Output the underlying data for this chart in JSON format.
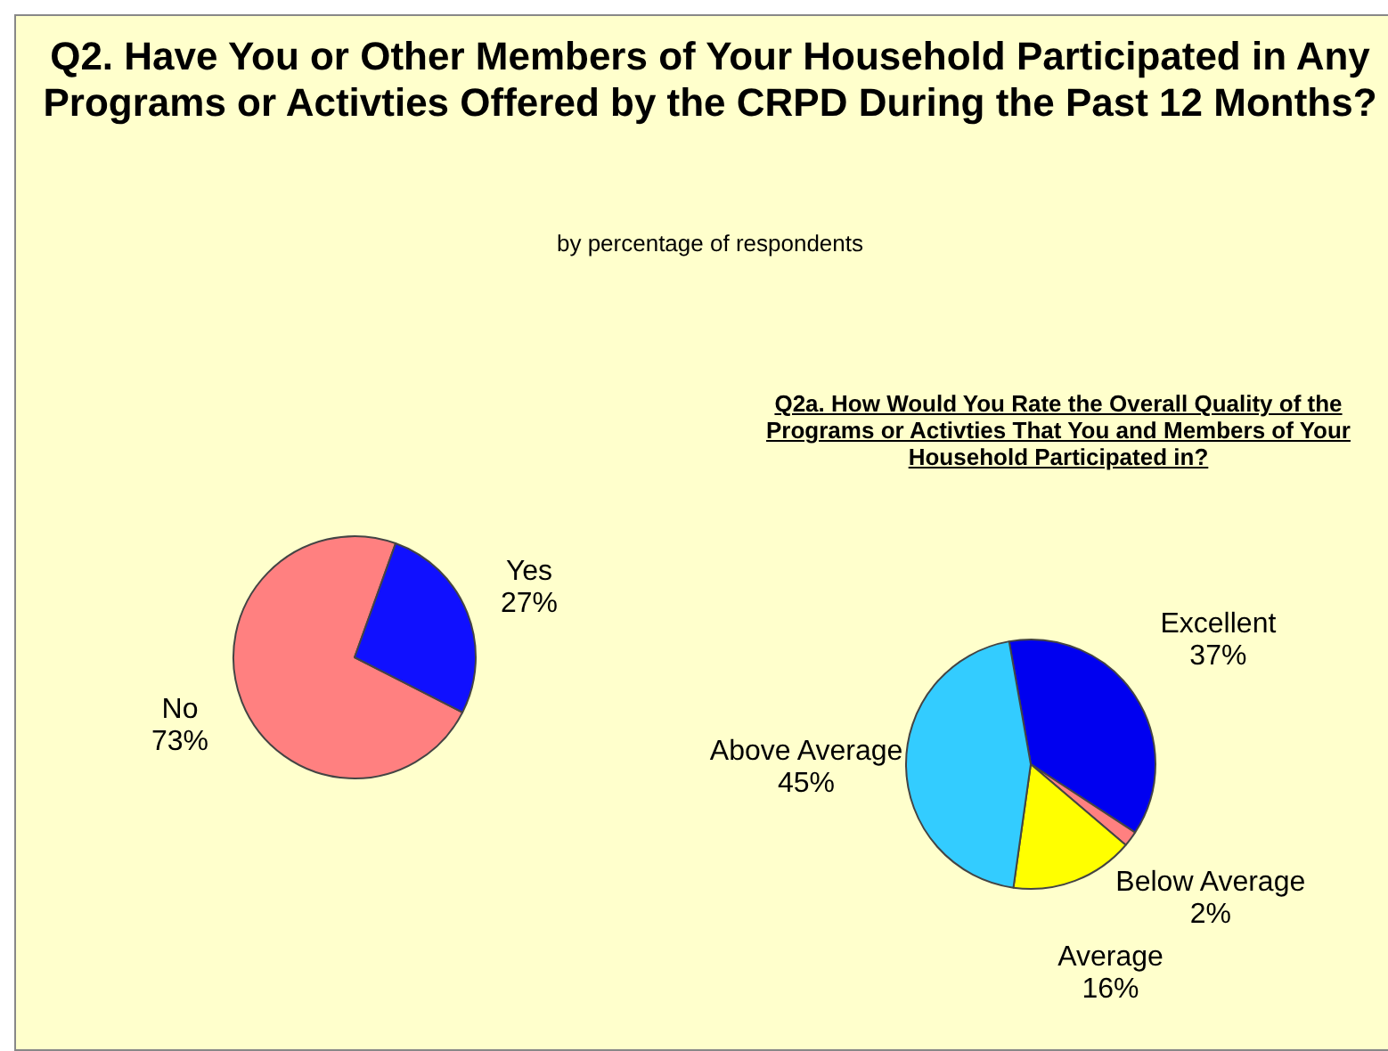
{
  "chart_data": [
    {
      "type": "pie",
      "title": "Q2. Have You or Other Members of Your Household Participated in Any Programs or Activties Offered by the CRPD During the Past 12 Months?",
      "subtitle": "by percentage of respondents",
      "categories": [
        "No",
        "Yes"
      ],
      "values": [
        73,
        27
      ],
      "colors": [
        "#ff8080",
        "#1010ff"
      ],
      "value_labels": [
        "73%",
        "27%"
      ]
    },
    {
      "type": "pie",
      "title": "Q2a. How Would You Rate the Overall Quality of the Programs or Activties That You and Members of Your Household Participated in?",
      "categories": [
        "Excellent",
        "Below Average",
        "Average",
        "Above Average"
      ],
      "values": [
        37,
        2,
        16,
        45
      ],
      "colors": [
        "#0000f0",
        "#ff8080",
        "#ffff00",
        "#33ccff"
      ],
      "value_labels": [
        "37%",
        "2%",
        "16%",
        "45%"
      ]
    }
  ]
}
